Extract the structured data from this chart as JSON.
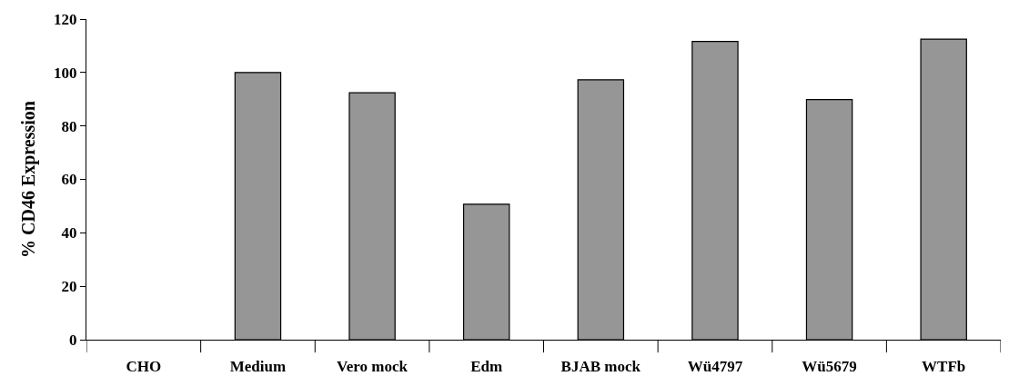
{
  "chart_data": {
    "type": "bar",
    "ylabel": "% CD46 Expression",
    "categories": [
      "CHO",
      "Medium",
      "Vero mock",
      "Edm",
      "BJAB mock",
      "Wü4797",
      "Wü5679",
      "WTFb"
    ],
    "values": [
      0,
      100,
      92.4,
      50.7,
      97.3,
      111.6,
      89.9,
      112.5
    ],
    "color": "#969696",
    "ylim": [
      0,
      120
    ],
    "yticks": [
      0,
      20,
      40,
      60,
      80,
      100,
      120
    ]
  }
}
